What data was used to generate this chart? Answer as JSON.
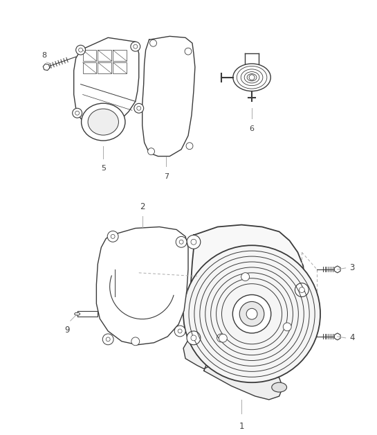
{
  "background_color": "#ffffff",
  "line_color": "#3a3a3a",
  "label_color": "#404040",
  "callout_line_color": "#aaaaaa",
  "fig_width": 5.45,
  "fig_height": 6.28,
  "dpi": 100
}
